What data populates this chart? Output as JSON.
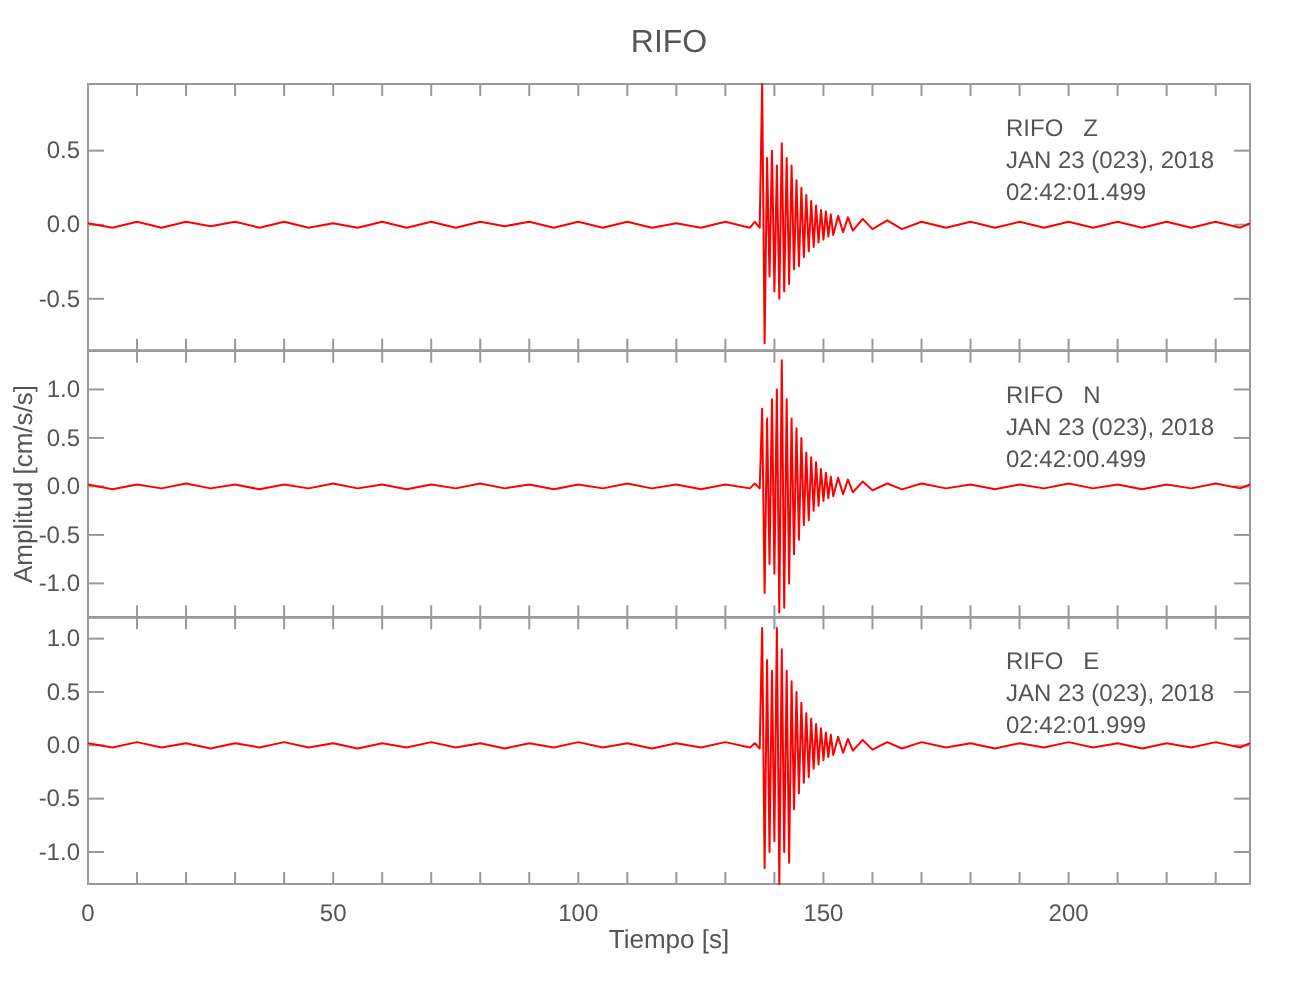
{
  "chart_data": [
    {
      "type": "line",
      "title": "RIFO",
      "annotations": [
        "RIFO   Z",
        "JAN 23 (023), 2018",
        "02:42:01.499"
      ],
      "tick_labels": "y",
      "grid": false,
      "marker": "none",
      "line_style": "solid",
      "xlim": [
        0,
        237
      ],
      "xticks": [
        0,
        {
          "value": 10,
          "label": null
        },
        {
          "value": 20,
          "label": null
        },
        {
          "value": 30,
          "label": null
        },
        {
          "value": 40,
          "label": null
        },
        50,
        {
          "value": 60,
          "label": null
        },
        {
          "value": 70,
          "label": null
        },
        {
          "value": 80,
          "label": null
        },
        {
          "value": 90,
          "label": null
        },
        100,
        {
          "value": 110,
          "label": null
        },
        {
          "value": 120,
          "label": null
        },
        {
          "value": 130,
          "label": null
        },
        {
          "value": 140,
          "label": null
        },
        150,
        {
          "value": 160,
          "label": null
        },
        {
          "value": 170,
          "label": null
        },
        {
          "value": 180,
          "label": null
        },
        {
          "value": 190,
          "label": null
        },
        200,
        {
          "value": 210,
          "label": null
        },
        {
          "value": 220,
          "label": null
        },
        {
          "value": 230,
          "label": null
        }
      ],
      "ylim": [
        -0.85,
        0.95
      ],
      "yticks": [
        {
          "value": -0.5,
          "label": "-0.5"
        },
        {
          "value": 0,
          "label": "0.0"
        },
        {
          "value": 0.5,
          "label": "0.5"
        }
      ],
      "x": [
        0,
        5,
        10,
        15,
        20,
        25,
        30,
        35,
        40,
        45,
        50,
        55,
        60,
        65,
        70,
        75,
        80,
        85,
        90,
        95,
        100,
        105,
        110,
        115,
        120,
        125,
        130,
        135,
        136,
        137,
        137.5,
        138,
        138.5,
        139,
        139.5,
        140,
        140.5,
        141,
        141.5,
        142,
        142.5,
        143,
        143.5,
        144,
        144.5,
        145,
        145.5,
        146,
        146.5,
        147,
        147.5,
        148,
        148.5,
        149,
        149.5,
        150,
        150.5,
        151,
        151.5,
        152,
        153,
        154,
        155,
        156,
        158,
        160,
        163,
        166,
        170,
        175,
        180,
        185,
        190,
        195,
        200,
        205,
        210,
        215,
        220,
        225,
        230,
        235,
        237
      ],
      "series": [
        {
          "color": "#ff0000",
          "values": [
            0.01,
            -0.02,
            0.02,
            -0.02,
            0.02,
            -0.01,
            0.02,
            -0.02,
            0.02,
            -0.02,
            0.01,
            -0.02,
            0.02,
            -0.02,
            0.02,
            -0.02,
            0.02,
            -0.01,
            0.02,
            -0.02,
            0.02,
            -0.02,
            0.02,
            -0.02,
            0.01,
            -0.02,
            0.02,
            -0.02,
            0.02,
            -0.02,
            0.95,
            -0.8,
            0.45,
            -0.35,
            0.5,
            -0.45,
            0.4,
            -0.5,
            0.55,
            -0.45,
            0.45,
            -0.4,
            0.4,
            -0.3,
            0.3,
            -0.28,
            0.25,
            -0.22,
            0.2,
            -0.18,
            0.16,
            -0.15,
            0.13,
            -0.12,
            0.1,
            -0.1,
            0.09,
            -0.08,
            0.07,
            -0.07,
            0.06,
            -0.05,
            0.05,
            -0.04,
            0.04,
            -0.03,
            0.03,
            -0.03,
            0.02,
            -0.02,
            0.02,
            -0.02,
            0.02,
            -0.02,
            0.02,
            -0.02,
            0.02,
            -0.02,
            0.02,
            -0.02,
            0.02,
            -0.02,
            0.01
          ]
        }
      ]
    },
    {
      "type": "line",
      "ylabel": "Amplitud [cm/s/s]",
      "annotations": [
        "RIFO   N",
        "JAN 23 (023), 2018",
        "02:42:00.499"
      ],
      "tick_labels": "y",
      "grid": false,
      "marker": "none",
      "line_style": "solid",
      "xlim": [
        0,
        237
      ],
      "xticks": [
        0,
        {
          "value": 10,
          "label": null
        },
        {
          "value": 20,
          "label": null
        },
        {
          "value": 30,
          "label": null
        },
        {
          "value": 40,
          "label": null
        },
        50,
        {
          "value": 60,
          "label": null
        },
        {
          "value": 70,
          "label": null
        },
        {
          "value": 80,
          "label": null
        },
        {
          "value": 90,
          "label": null
        },
        100,
        {
          "value": 110,
          "label": null
        },
        {
          "value": 120,
          "label": null
        },
        {
          "value": 130,
          "label": null
        },
        {
          "value": 140,
          "label": null
        },
        150,
        {
          "value": 160,
          "label": null
        },
        {
          "value": 170,
          "label": null
        },
        {
          "value": 180,
          "label": null
        },
        {
          "value": 190,
          "label": null
        },
        200,
        {
          "value": 210,
          "label": null
        },
        {
          "value": 220,
          "label": null
        },
        {
          "value": 230,
          "label": null
        }
      ],
      "ylim": [
        -1.35,
        1.4
      ],
      "yticks": [
        {
          "value": -1,
          "label": "-1.0"
        },
        {
          "value": -0.5,
          "label": "-0.5"
        },
        {
          "value": 0,
          "label": "0.0"
        },
        {
          "value": 0.5,
          "label": "0.5"
        },
        {
          "value": 1,
          "label": "1.0"
        }
      ],
      "x": [
        0,
        5,
        10,
        15,
        20,
        25,
        30,
        35,
        40,
        45,
        50,
        55,
        60,
        65,
        70,
        75,
        80,
        85,
        90,
        95,
        100,
        105,
        110,
        115,
        120,
        125,
        130,
        135,
        136,
        137,
        137.5,
        138,
        138.5,
        139,
        139.5,
        140,
        140.5,
        141,
        141.5,
        142,
        142.5,
        143,
        143.5,
        144,
        144.5,
        145,
        145.5,
        146,
        146.5,
        147,
        147.5,
        148,
        148.5,
        149,
        149.5,
        150,
        150.5,
        151,
        151.5,
        152,
        153,
        154,
        155,
        156,
        158,
        160,
        163,
        166,
        170,
        175,
        180,
        185,
        190,
        195,
        200,
        205,
        210,
        215,
        220,
        225,
        230,
        235,
        237
      ],
      "series": [
        {
          "color": "#ff0000",
          "values": [
            0.02,
            -0.03,
            0.02,
            -0.02,
            0.03,
            -0.02,
            0.02,
            -0.03,
            0.02,
            -0.02,
            0.03,
            -0.02,
            0.02,
            -0.03,
            0.02,
            -0.02,
            0.03,
            -0.02,
            0.02,
            -0.03,
            0.02,
            -0.02,
            0.03,
            -0.02,
            0.02,
            -0.03,
            0.02,
            -0.02,
            0.03,
            -0.02,
            0.8,
            -1.1,
            0.7,
            -0.8,
            0.9,
            -0.9,
            1.0,
            -1.3,
            1.3,
            -1.25,
            0.9,
            -1.0,
            0.7,
            -0.7,
            0.6,
            -0.55,
            0.5,
            -0.4,
            0.35,
            -0.35,
            0.3,
            -0.25,
            0.25,
            -0.2,
            0.18,
            -0.15,
            0.14,
            -0.12,
            0.1,
            -0.1,
            0.09,
            -0.08,
            0.07,
            -0.06,
            0.05,
            -0.04,
            0.03,
            -0.03,
            0.03,
            -0.02,
            0.02,
            -0.03,
            0.02,
            -0.02,
            0.03,
            -0.02,
            0.02,
            -0.03,
            0.02,
            -0.02,
            0.03,
            -0.02,
            0.02
          ]
        }
      ]
    },
    {
      "type": "line",
      "xlabel": "Tiempo [s]",
      "annotations": [
        "RIFO   E",
        "JAN 23 (023), 2018",
        "02:42:01.999"
      ],
      "grid": false,
      "marker": "none",
      "line_style": "solid",
      "xlim": [
        0,
        237
      ],
      "xticks": [
        0,
        {
          "value": 10,
          "label": null
        },
        {
          "value": 20,
          "label": null
        },
        {
          "value": 30,
          "label": null
        },
        {
          "value": 40,
          "label": null
        },
        50,
        {
          "value": 60,
          "label": null
        },
        {
          "value": 70,
          "label": null
        },
        {
          "value": 80,
          "label": null
        },
        {
          "value": 90,
          "label": null
        },
        100,
        {
          "value": 110,
          "label": null
        },
        {
          "value": 120,
          "label": null
        },
        {
          "value": 130,
          "label": null
        },
        {
          "value": 140,
          "label": null
        },
        150,
        {
          "value": 160,
          "label": null
        },
        {
          "value": 170,
          "label": null
        },
        {
          "value": 180,
          "label": null
        },
        {
          "value": 190,
          "label": null
        },
        200,
        {
          "value": 210,
          "label": null
        },
        {
          "value": 220,
          "label": null
        },
        {
          "value": 230,
          "label": null
        }
      ],
      "ylim": [
        -1.3,
        1.2
      ],
      "yticks": [
        {
          "value": -1,
          "label": "-1.0"
        },
        {
          "value": -0.5,
          "label": "-0.5"
        },
        {
          "value": 0,
          "label": "0.0"
        },
        {
          "value": 0.5,
          "label": "0.5"
        },
        {
          "value": 1,
          "label": "1.0"
        }
      ],
      "x": [
        0,
        5,
        10,
        15,
        20,
        25,
        30,
        35,
        40,
        45,
        50,
        55,
        60,
        65,
        70,
        75,
        80,
        85,
        90,
        95,
        100,
        105,
        110,
        115,
        120,
        125,
        130,
        135,
        136,
        137,
        137.5,
        138,
        138.5,
        139,
        139.5,
        140,
        140.5,
        141,
        141.5,
        142,
        142.5,
        143,
        143.5,
        144,
        144.5,
        145,
        145.5,
        146,
        146.5,
        147,
        147.5,
        148,
        148.5,
        149,
        149.5,
        150,
        150.5,
        151,
        151.5,
        152,
        153,
        154,
        155,
        156,
        158,
        160,
        163,
        166,
        170,
        175,
        180,
        185,
        190,
        195,
        200,
        205,
        210,
        215,
        220,
        225,
        230,
        235,
        237
      ],
      "series": [
        {
          "color": "#ff0000",
          "values": [
            0.02,
            -0.02,
            0.03,
            -0.02,
            0.02,
            -0.03,
            0.02,
            -0.02,
            0.03,
            -0.02,
            0.02,
            -0.03,
            0.02,
            -0.02,
            0.03,
            -0.02,
            0.02,
            -0.03,
            0.02,
            -0.02,
            0.03,
            -0.02,
            0.02,
            -0.03,
            0.02,
            -0.02,
            0.03,
            -0.02,
            0.02,
            -0.03,
            1.1,
            -1.15,
            0.8,
            -1.0,
            0.7,
            -0.9,
            1.1,
            -1.3,
            0.9,
            -1.0,
            0.7,
            -1.1,
            0.6,
            -0.6,
            0.5,
            -0.45,
            0.4,
            -0.35,
            0.3,
            -0.3,
            0.25,
            -0.22,
            0.2,
            -0.18,
            0.16,
            -0.14,
            0.12,
            -0.11,
            0.1,
            -0.09,
            0.08,
            -0.07,
            0.06,
            -0.05,
            0.05,
            -0.04,
            0.03,
            -0.03,
            0.03,
            -0.02,
            0.02,
            -0.03,
            0.02,
            -0.02,
            0.03,
            -0.02,
            0.02,
            -0.03,
            0.02,
            -0.02,
            0.03,
            -0.02,
            0.02
          ]
        }
      ]
    }
  ]
}
